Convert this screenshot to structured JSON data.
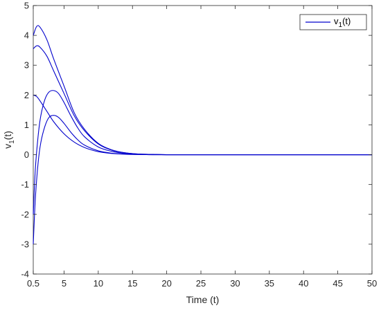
{
  "chart_data": {
    "type": "line",
    "xlabel": "Time (t)",
    "ylabel": {
      "base": "v",
      "sub": "1",
      "suffix": "(t)"
    },
    "xlim": [
      0.5,
      50
    ],
    "ylim": [
      -4,
      5
    ],
    "xticks": [
      0.5,
      5,
      10,
      15,
      20,
      25,
      30,
      35,
      40,
      45,
      50
    ],
    "xtick_labels": [
      "0.5",
      "5",
      "10",
      "15",
      "20",
      "25",
      "30",
      "35",
      "40",
      "45",
      "50"
    ],
    "yticks": [
      -4,
      -3,
      -2,
      -1,
      0,
      1,
      2,
      3,
      4,
      5
    ],
    "ytick_labels": [
      "-4",
      "-3",
      "-2",
      "-1",
      "0",
      "1",
      "2",
      "3",
      "4",
      "5"
    ],
    "grid": false,
    "legend": {
      "base": "v",
      "sub": "1",
      "suffix": "(t)",
      "placement": "top-right"
    },
    "line_color": "#0000cc",
    "series": [
      {
        "x": [
          0.5,
          1.0,
          1.5,
          2.5,
          3.5,
          5,
          6.5,
          8,
          10,
          12,
          14,
          16,
          18,
          20,
          25,
          30,
          40,
          50
        ],
        "y": [
          4.0,
          4.3,
          4.27,
          3.85,
          3.2,
          2.3,
          1.4,
          0.85,
          0.38,
          0.16,
          0.06,
          0.02,
          0.01,
          0.0,
          0.0,
          0.0,
          0.0,
          0.0
        ]
      },
      {
        "x": [
          0.5,
          1.0,
          1.5,
          2.5,
          3.5,
          5,
          6.5,
          8,
          10,
          12,
          14,
          16,
          18,
          20,
          25,
          30,
          40,
          50
        ],
        "y": [
          3.55,
          3.65,
          3.6,
          3.3,
          2.8,
          2.05,
          1.3,
          0.8,
          0.36,
          0.15,
          0.06,
          0.02,
          0.01,
          0.0,
          0.0,
          0.0,
          0.0,
          0.0
        ]
      },
      {
        "x": [
          0.5,
          0.8,
          1.2,
          1.6,
          2.2,
          2.8,
          3.5,
          4.2,
          5,
          6,
          7,
          8,
          10,
          12,
          14,
          16,
          18,
          20,
          25,
          30,
          40,
          50
        ],
        "y": [
          -2.0,
          -0.5,
          0.6,
          1.3,
          1.85,
          2.1,
          2.15,
          2.05,
          1.75,
          1.3,
          0.9,
          0.6,
          0.26,
          0.11,
          0.04,
          0.02,
          0.01,
          0.0,
          0.0,
          0.0,
          0.0,
          0.0
        ]
      },
      {
        "x": [
          0.5,
          1.0,
          1.5,
          2.5,
          3.5,
          5,
          6.5,
          8,
          10,
          12,
          14,
          16,
          18,
          20,
          25,
          30,
          40,
          50
        ],
        "y": [
          2.0,
          1.95,
          1.8,
          1.45,
          1.1,
          0.7,
          0.42,
          0.24,
          0.1,
          0.04,
          0.015,
          0.005,
          0.0,
          0.0,
          0.0,
          0.0,
          0.0,
          0.0
        ]
      },
      {
        "x": [
          0.5,
          0.8,
          1.2,
          1.6,
          2.2,
          2.8,
          3.5,
          4.2,
          5,
          6,
          7,
          8,
          10,
          12,
          14,
          16,
          18,
          20,
          25,
          30,
          40,
          50
        ],
        "y": [
          -3.0,
          -1.5,
          -0.3,
          0.4,
          0.95,
          1.25,
          1.32,
          1.25,
          1.05,
          0.75,
          0.5,
          0.32,
          0.13,
          0.05,
          0.02,
          0.01,
          0.0,
          0.0,
          0.0,
          0.0,
          0.0,
          0.0
        ]
      }
    ]
  }
}
